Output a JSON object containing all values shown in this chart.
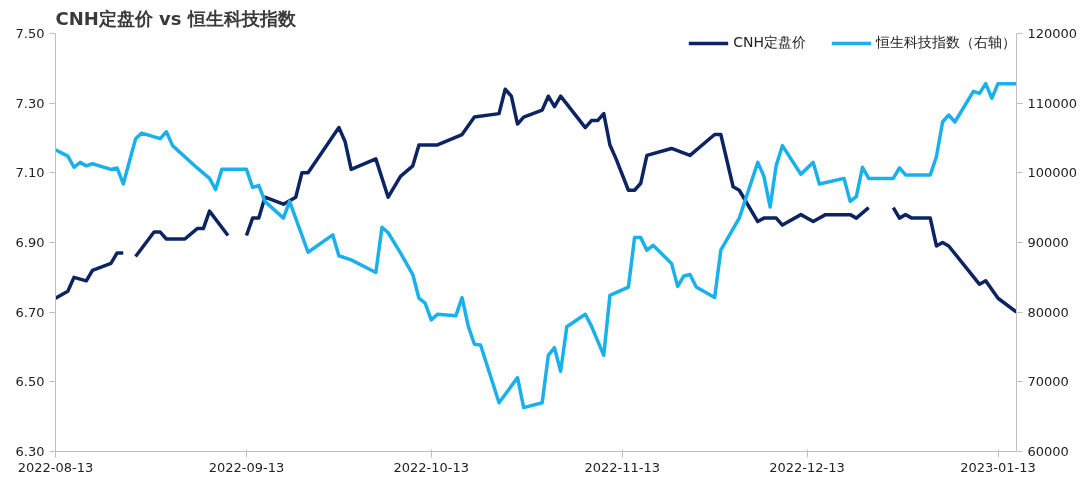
{
  "chart_data": {
    "type": "line",
    "title": "CNH定盘价 vs 恒生科技指数",
    "xlim": [
      "2022-08-13",
      "2023-01-16"
    ],
    "xticks": [
      "2022-08-13",
      "2022-09-13",
      "2022-10-13",
      "2022-11-13",
      "2022-12-13",
      "2023-01-13"
    ],
    "ylim": [
      6.3,
      7.5
    ],
    "yticks": [
      {
        "value": 6.3,
        "label": "6.30"
      },
      {
        "value": 6.5,
        "label": "6.50"
      },
      {
        "value": 6.7,
        "label": "6.70"
      },
      {
        "value": 6.9,
        "label": "6.90"
      },
      {
        "value": 7.1,
        "label": "7.10"
      },
      {
        "value": 7.3,
        "label": "7.30"
      },
      {
        "value": 7.5,
        "label": "7.50"
      }
    ],
    "y2lim": [
      60000,
      120000
    ],
    "y2ticks": [
      60000,
      70000,
      80000,
      90000,
      100000,
      110000,
      120000
    ],
    "grid": false,
    "legend": "top right",
    "marker": "none",
    "line_style": "solid",
    "series": [
      {
        "name": "CNH定盘价",
        "color": "#0d2463",
        "x": [
          "2022-08-13",
          "2022-08-15",
          "2022-08-16",
          "2022-08-18",
          "2022-08-19",
          "2022-08-22",
          "2022-08-23",
          "2022-08-24",
          "2022-08-25",
          "2022-08-26",
          "2022-08-29",
          "2022-08-30",
          "2022-08-31",
          "2022-09-03",
          "2022-09-05",
          "2022-09-06",
          "2022-09-07",
          "2022-09-10",
          "2022-09-11",
          "2022-09-13",
          "2022-09-14",
          "2022-09-15",
          "2022-09-16",
          "2022-09-19",
          "2022-09-21",
          "2022-09-22",
          "2022-09-23",
          "2022-09-28",
          "2022-09-29",
          "2022-09-30",
          "2022-10-04",
          "2022-10-06",
          "2022-10-08",
          "2022-10-10",
          "2022-10-11",
          "2022-10-14",
          "2022-10-18",
          "2022-10-20",
          "2022-10-24",
          "2022-10-25",
          "2022-10-26",
          "2022-10-27",
          "2022-10-28",
          "2022-10-31",
          "2022-11-01",
          "2022-11-02",
          "2022-11-03",
          "2022-11-07",
          "2022-11-08",
          "2022-11-09",
          "2022-11-10",
          "2022-11-11",
          "2022-11-12",
          "2022-11-14",
          "2022-11-15",
          "2022-11-16",
          "2022-11-17",
          "2022-11-21",
          "2022-11-24",
          "2022-11-28",
          "2022-11-29",
          "2022-12-01",
          "2022-12-02",
          "2022-12-05",
          "2022-12-06",
          "2022-12-08",
          "2022-12-09",
          "2022-12-12",
          "2022-12-14",
          "2022-12-16",
          "2022-12-20",
          "2022-12-21",
          "2022-12-23",
          "2022-12-25",
          "2022-12-27",
          "2022-12-28",
          "2022-12-29",
          "2022-12-30",
          "2023-01-02",
          "2023-01-03",
          "2023-01-04",
          "2023-01-05",
          "2023-01-10",
          "2023-01-11",
          "2023-01-13",
          "2023-01-16"
        ],
        "values": [
          6.74,
          6.76,
          6.8,
          6.79,
          6.82,
          6.84,
          6.87,
          6.87,
          null,
          6.86,
          6.93,
          6.93,
          6.91,
          6.91,
          6.94,
          6.94,
          6.99,
          6.92,
          null,
          6.92,
          6.97,
          6.97,
          7.03,
          7.01,
          7.03,
          7.1,
          7.1,
          7.23,
          7.19,
          7.11,
          7.14,
          7.03,
          7.09,
          7.12,
          7.18,
          7.18,
          7.21,
          7.26,
          7.27,
          7.34,
          7.32,
          7.24,
          7.26,
          7.28,
          7.32,
          7.29,
          7.32,
          7.23,
          7.25,
          7.25,
          7.27,
          7.18,
          7.14,
          7.05,
          7.05,
          7.07,
          7.15,
          7.17,
          7.15,
          7.21,
          7.21,
          7.06,
          7.05,
          6.96,
          6.97,
          6.97,
          6.95,
          6.98,
          6.96,
          6.98,
          6.98,
          6.97,
          7.0,
          null,
          7.0,
          6.97,
          6.98,
          6.97,
          6.97,
          6.89,
          6.9,
          6.89,
          6.78,
          6.79,
          6.74,
          6.7
        ]
      },
      {
        "name": "恒生科技指数（右轴）",
        "color": "#1ab0ec",
        "axis": "y2",
        "x": [
          "2022-08-13",
          "2022-08-15",
          "2022-08-16",
          "2022-08-17",
          "2022-08-18",
          "2022-08-19",
          "2022-08-22",
          "2022-08-23",
          "2022-08-24",
          "2022-08-26",
          "2022-08-27",
          "2022-08-30",
          "2022-08-31",
          "2022-09-01",
          "2022-09-05",
          "2022-09-07",
          "2022-09-08",
          "2022-09-09",
          "2022-09-13",
          "2022-09-14",
          "2022-09-15",
          "2022-09-16",
          "2022-09-19",
          "2022-09-20",
          "2022-09-23",
          "2022-09-27",
          "2022-09-28",
          "2022-09-30",
          "2022-10-04",
          "2022-10-05",
          "2022-10-06",
          "2022-10-08",
          "2022-10-10",
          "2022-10-11",
          "2022-10-12",
          "2022-10-13",
          "2022-10-14",
          "2022-10-17",
          "2022-10-18",
          "2022-10-19",
          "2022-10-20",
          "2022-10-21",
          "2022-10-24",
          "2022-10-27",
          "2022-10-28",
          "2022-10-31",
          "2022-11-01",
          "2022-11-02",
          "2022-11-03",
          "2022-11-04",
          "2022-11-07",
          "2022-11-08",
          "2022-11-10",
          "2022-11-11",
          "2022-11-14",
          "2022-11-15",
          "2022-11-16",
          "2022-11-17",
          "2022-11-18",
          "2022-11-21",
          "2022-11-22",
          "2022-11-23",
          "2022-11-24",
          "2022-11-25",
          "2022-11-28",
          "2022-11-29",
          "2022-12-02",
          "2022-12-05",
          "2022-12-06",
          "2022-12-07",
          "2022-12-08",
          "2022-12-09",
          "2022-12-12",
          "2022-12-14",
          "2022-12-15",
          "2022-12-19",
          "2022-12-20",
          "2022-12-21",
          "2022-12-22",
          "2022-12-23",
          "2022-12-27",
          "2022-12-28",
          "2022-12-29",
          "2023-01-02",
          "2023-01-03",
          "2023-01-04",
          "2023-01-05",
          "2023-01-06",
          "2023-01-09",
          "2023-01-10",
          "2023-01-11",
          "2023-01-12",
          "2023-01-13",
          "2023-01-16"
        ],
        "values": [
          103300,
          102400,
          100800,
          101500,
          101000,
          101300,
          100500,
          100700,
          98400,
          104900,
          105700,
          104900,
          105900,
          103900,
          100700,
          99200,
          97600,
          100500,
          100500,
          97900,
          98200,
          95900,
          93500,
          95900,
          88600,
          91100,
          88100,
          87500,
          85700,
          92200,
          91400,
          88500,
          85400,
          82000,
          81300,
          78900,
          79700,
          79500,
          82100,
          78000,
          75400,
          75300,
          67000,
          70600,
          66300,
          67000,
          73800,
          74900,
          71500,
          77900,
          79700,
          78000,
          73800,
          82400,
          83600,
          90700,
          90700,
          88900,
          89600,
          87000,
          83700,
          85200,
          85400,
          83600,
          82100,
          88900,
          93500,
          101500,
          99500,
          95100,
          101100,
          103900,
          99800,
          101500,
          98400,
          99200,
          95900,
          96600,
          100800,
          99200,
          99200,
          100700,
          99700,
          99700,
          102300,
          107300,
          108300,
          107300,
          111700,
          111400,
          112800,
          110700,
          112800,
          112800
        ]
      }
    ]
  }
}
